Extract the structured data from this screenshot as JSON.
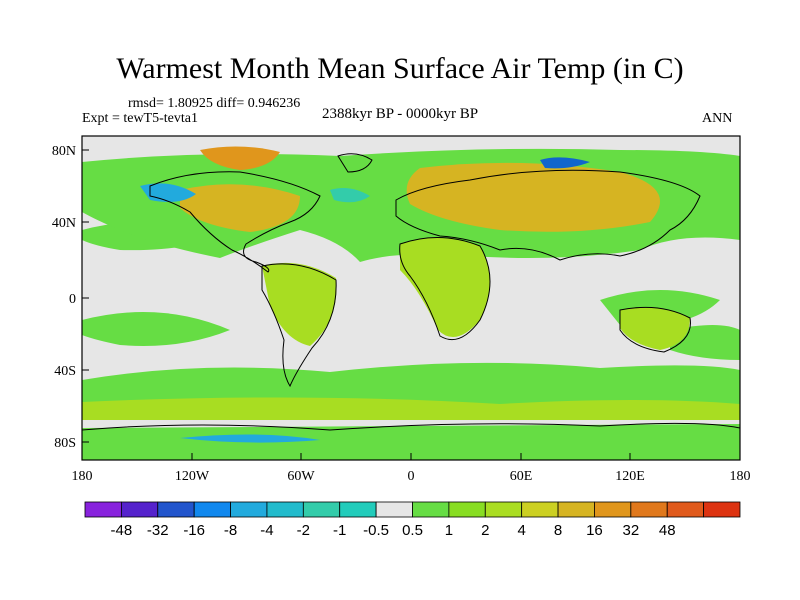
{
  "title": "Warmest Month Mean Surface Air Temp (in C)",
  "stats_line": "rmsd= 1.80925 diff= 0.946236",
  "experiment": "Expt = tewT5-tevta1",
  "period": "2388kyr BP - 0000kyr BP",
  "season": "ANN",
  "colors": {
    "ocean_neutral": "#e6e6e6",
    "pos_small": "#66dd44",
    "pos_medium": "#a8dd22",
    "pos_large": "#d6b422",
    "pos_xlarge": "#e0961c",
    "neg_small": "#33ccaa",
    "neg_medium": "#22aadd",
    "neg_large": "#1166cc"
  },
  "map": {
    "projection": "cylindrical-equidistant",
    "lon_range": [
      -180,
      180
    ],
    "lat_range": [
      -90,
      90
    ],
    "x_ticks": [
      "180",
      "120W",
      "60W",
      "0",
      "60E",
      "120E",
      "180"
    ],
    "y_ticks": [
      "80N",
      "40N",
      "0",
      "40S",
      "80S"
    ]
  },
  "colorbar": {
    "colors": [
      "#8822dd",
      "#5522cc",
      "#2255cc",
      "#1188ee",
      "#22aadd",
      "#22bbcc",
      "#33ccaa",
      "#22ccbb",
      "#e6e6e6",
      "#66dd44",
      "#88dd22",
      "#aadd22",
      "#ccd022",
      "#d6b422",
      "#e0961c",
      "#e0781c",
      "#e05a1c",
      "#dd3311"
    ],
    "labels": [
      "-48",
      "-32",
      "-16",
      "-8",
      "-4",
      "-2",
      "-1",
      "-0.5",
      "0.5",
      "1",
      "2",
      "4",
      "8",
      "16",
      "32",
      "48"
    ]
  }
}
